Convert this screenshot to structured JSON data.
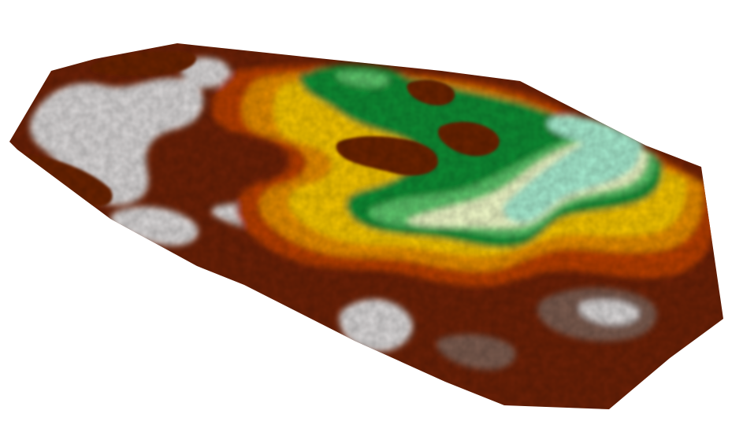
{
  "map": {
    "kind": "elevation-relief",
    "background_color": "#ffffff",
    "color_ramp": [
      {
        "zone": "lowest",
        "color": "#a6ebcf"
      },
      {
        "zone": "low",
        "color": "#eef7c6"
      },
      {
        "zone": "low-mid",
        "color": "#5cc46a"
      },
      {
        "zone": "mid-low",
        "color": "#0f8a33"
      },
      {
        "zone": "mid",
        "color": "#f2c200"
      },
      {
        "zone": "mid-high",
        "color": "#e28a00"
      },
      {
        "zone": "high",
        "color": "#b53d06"
      },
      {
        "zone": "higher",
        "color": "#6b2006"
      },
      {
        "zone": "very-high",
        "color": "#7a5a4e"
      },
      {
        "zone": "peak",
        "color": "#d9d6d6"
      }
    ],
    "hillshade": true,
    "legend_shown": false,
    "text_labels_shown": false
  }
}
